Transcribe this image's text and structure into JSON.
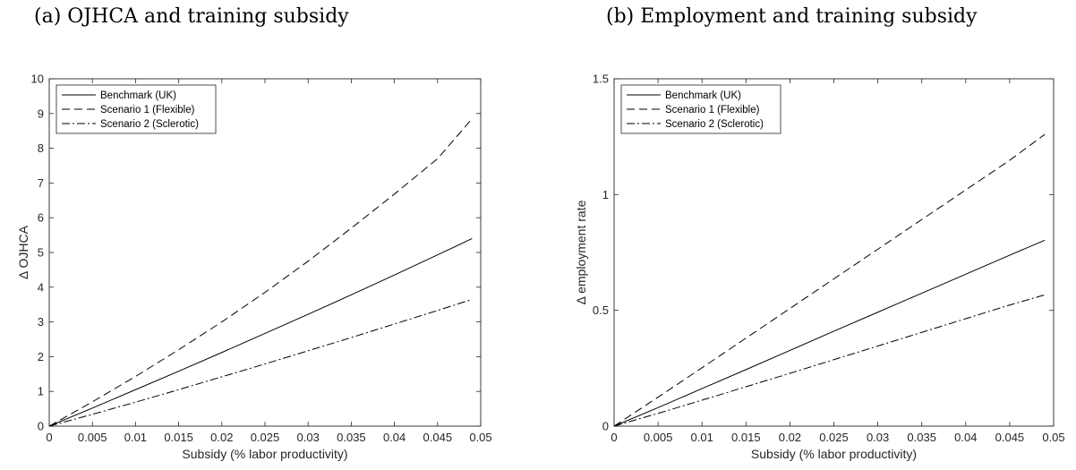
{
  "titles": {
    "a": "(a) OJHCA and training subsidy",
    "b": "(b) Employment and training subsidy"
  },
  "chart_data": [
    {
      "type": "line",
      "title": "(a) OJHCA and training subsidy",
      "xlabel": "Subsidy (% labor productivity)",
      "ylabel": "Δ OJHCA",
      "xlim": [
        0,
        0.05
      ],
      "ylim": [
        0,
        10
      ],
      "xticks": [
        "0",
        "0.005",
        "0.01",
        "0.015",
        "0.02",
        "0.025",
        "0.03",
        "0.035",
        "0.04",
        "0.045",
        "0.05"
      ],
      "yticks": [
        "0",
        "1",
        "2",
        "3",
        "4",
        "5",
        "6",
        "7",
        "8",
        "9",
        "10"
      ],
      "legend_position": "top-left",
      "grid": false,
      "x": [
        0,
        0.005,
        0.01,
        0.015,
        0.02,
        0.025,
        0.03,
        0.035,
        0.04,
        0.045,
        0.049
      ],
      "series": [
        {
          "name": "Benchmark (UK)",
          "style": "solid",
          "values": [
            0,
            0.52,
            1.05,
            1.58,
            2.12,
            2.67,
            3.22,
            3.78,
            4.35,
            4.93,
            5.4
          ]
        },
        {
          "name": "Scenario 1 (Flexible)",
          "style": "dashed",
          "values": [
            0,
            0.7,
            1.43,
            2.2,
            3.0,
            3.85,
            4.75,
            5.7,
            6.68,
            7.7,
            8.85
          ]
        },
        {
          "name": "Scenario 2 (Sclerotic)",
          "style": "dashdot",
          "values": [
            0,
            0.34,
            0.69,
            1.05,
            1.42,
            1.79,
            2.17,
            2.55,
            2.94,
            3.33,
            3.65
          ]
        }
      ]
    },
    {
      "type": "line",
      "title": "(b) Employment and training subsidy",
      "xlabel": "Subsidy (% labor productivity)",
      "ylabel": "Δ employment rate",
      "xlim": [
        0,
        0.05
      ],
      "ylim": [
        0,
        1.5
      ],
      "xticks": [
        "0",
        "0.005",
        "0.01",
        "0.015",
        "0.02",
        "0.025",
        "0.03",
        "0.035",
        "0.04",
        "0.045",
        "0.05"
      ],
      "yticks": [
        "0",
        "0.5",
        "1",
        "1.5"
      ],
      "legend_position": "top-left",
      "grid": false,
      "x": [
        0,
        0.005,
        0.01,
        0.015,
        0.02,
        0.025,
        0.03,
        0.035,
        0.04,
        0.045,
        0.049
      ],
      "series": [
        {
          "name": "Benchmark (UK)",
          "style": "solid",
          "values": [
            0,
            0.08,
            0.162,
            0.244,
            0.327,
            0.41,
            0.492,
            0.574,
            0.656,
            0.738,
            0.803
          ]
        },
        {
          "name": "Scenario 1 (Flexible)",
          "style": "dashed",
          "values": [
            0,
            0.125,
            0.252,
            0.38,
            0.508,
            0.636,
            0.764,
            0.892,
            1.02,
            1.148,
            1.26
          ]
        },
        {
          "name": "Scenario 2 (Sclerotic)",
          "style": "dashdot",
          "values": [
            0,
            0.055,
            0.112,
            0.17,
            0.228,
            0.287,
            0.346,
            0.405,
            0.464,
            0.523,
            0.567
          ]
        }
      ]
    }
  ]
}
